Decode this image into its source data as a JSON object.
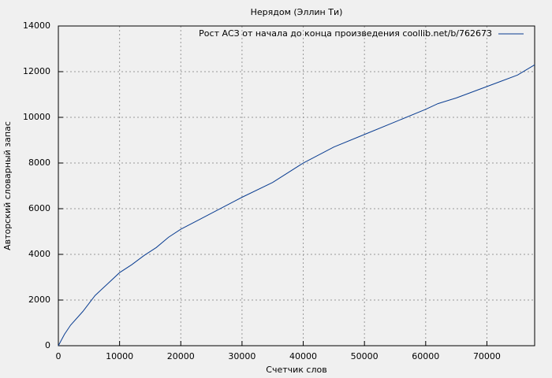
{
  "chart_data": {
    "type": "line",
    "title": "Нерядом (Эллин Ти)",
    "x_label": "Счетчик слов",
    "y_label": "Авторский словарный запас",
    "x": [
      0,
      1000,
      2000,
      4000,
      6000,
      8000,
      10000,
      12000,
      14000,
      16000,
      18000,
      20000,
      25000,
      30000,
      35000,
      40000,
      45000,
      50000,
      55000,
      60000,
      62000,
      65000,
      70000,
      75000,
      77800
    ],
    "series": [
      {
        "name": "Рост АСЗ от начала до конца произведения coollib.net/b/762673",
        "color": "#0a3d91",
        "values": [
          0,
          500,
          900,
          1500,
          2200,
          2700,
          3200,
          3550,
          3950,
          4300,
          4750,
          5100,
          5800,
          6500,
          7150,
          8000,
          8700,
          9250,
          9800,
          10350,
          10600,
          10850,
          11350,
          11850,
          12300
        ]
      }
    ],
    "xlim": [
      0,
      77800
    ],
    "ylim": [
      0,
      14000
    ],
    "xticks": [
      0,
      10000,
      20000,
      30000,
      40000,
      50000,
      60000,
      70000
    ],
    "yticks": [
      0,
      2000,
      4000,
      6000,
      8000,
      10000,
      12000,
      14000
    ],
    "grid": true,
    "legend": "top-right"
  }
}
